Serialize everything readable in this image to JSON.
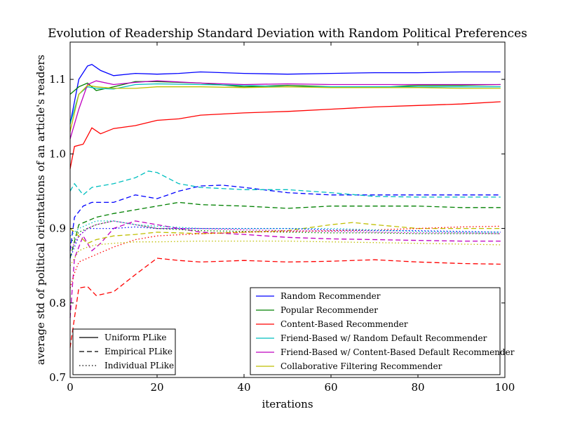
{
  "chart_data": {
    "type": "line",
    "title": "Evolution of Readership Standard Deviation with Random Political Preferences",
    "xlabel": "iterations",
    "ylabel": "average std of political orientations of an article's readers",
    "xlim": [
      0,
      100
    ],
    "ylim": [
      0.7,
      1.15
    ],
    "xticks": [
      0,
      20,
      40,
      60,
      80,
      100
    ],
    "yticks": [
      0.7,
      0.8,
      0.9,
      1.0,
      1.1
    ],
    "xtick_labels": [
      "0",
      "20",
      "40",
      "60",
      "80",
      "100"
    ],
    "ytick_labels": [
      "0.7",
      "0.8",
      "0.9",
      "1.0",
      "1.1"
    ],
    "grid": false,
    "legend_recommenders": {
      "placement": "lower-right",
      "entries": [
        {
          "name": "Random Recommender",
          "color": "#0000ff"
        },
        {
          "name": "Popular Recommender",
          "color": "#008000"
        },
        {
          "name": "Content-Based Recommender",
          "color": "#ff0000"
        },
        {
          "name": "Friend-Based w/ Random Default Recommender",
          "color": "#00bfbf"
        },
        {
          "name": "Friend-Based w/ Content-Based Default Recommender",
          "color": "#bf00bf"
        },
        {
          "name": "Collaborative Filtering Recommender",
          "color": "#bfbf00"
        }
      ]
    },
    "legend_plike": {
      "placement": "lower-left",
      "entries": [
        {
          "name": "Uniform PLike",
          "dash": "solid"
        },
        {
          "name": "Empirical PLike",
          "dash": "dashed"
        },
        {
          "name": "Individual PLike",
          "dash": "dotted"
        }
      ]
    },
    "series": [
      {
        "name": "Random Recommender / Uniform PLike",
        "color": "#0000ff",
        "dash": "solid",
        "x": [
          0,
          2,
          4,
          5,
          7,
          10,
          15,
          20,
          25,
          30,
          40,
          50,
          60,
          70,
          80,
          90,
          99
        ],
        "y": [
          1.04,
          1.1,
          1.118,
          1.12,
          1.112,
          1.105,
          1.108,
          1.107,
          1.108,
          1.11,
          1.108,
          1.107,
          1.108,
          1.109,
          1.109,
          1.11,
          1.11
        ]
      },
      {
        "name": "Popular Recommender / Uniform PLike",
        "color": "#008000",
        "dash": "solid",
        "x": [
          0,
          2,
          4,
          6,
          10,
          15,
          20,
          30,
          40,
          50,
          60,
          70,
          80,
          90,
          99
        ],
        "y": [
          1.08,
          1.09,
          1.095,
          1.085,
          1.09,
          1.097,
          1.097,
          1.095,
          1.09,
          1.092,
          1.09,
          1.089,
          1.092,
          1.092,
          1.093
        ]
      },
      {
        "name": "Content-Based Recommender / Uniform PLike",
        "color": "#ff0000",
        "dash": "solid",
        "x": [
          0,
          1,
          3,
          5,
          7,
          10,
          15,
          20,
          25,
          30,
          40,
          50,
          60,
          70,
          80,
          90,
          99
        ],
        "y": [
          0.98,
          1.01,
          1.013,
          1.035,
          1.027,
          1.034,
          1.038,
          1.045,
          1.047,
          1.052,
          1.055,
          1.057,
          1.06,
          1.063,
          1.065,
          1.067,
          1.07
        ]
      },
      {
        "name": "Friend-Based w/ Random Default Recommender / Uniform PLike",
        "color": "#00bfbf",
        "dash": "solid",
        "x": [
          0,
          2,
          4,
          6,
          10,
          15,
          20,
          30,
          40,
          50,
          60,
          70,
          80,
          90,
          99
        ],
        "y": [
          1.04,
          1.08,
          1.09,
          1.088,
          1.087,
          1.093,
          1.094,
          1.093,
          1.092,
          1.09,
          1.09,
          1.09,
          1.09,
          1.09,
          1.09
        ]
      },
      {
        "name": "Friend-Based w/ Content-Based Default Recommender / Uniform PLike",
        "color": "#bf00bf",
        "dash": "solid",
        "x": [
          0,
          2,
          4,
          6,
          10,
          15,
          20,
          30,
          40,
          50,
          60,
          70,
          80,
          90,
          99
        ],
        "y": [
          1.02,
          1.06,
          1.093,
          1.098,
          1.093,
          1.096,
          1.098,
          1.095,
          1.093,
          1.094,
          1.093,
          1.093,
          1.093,
          1.093,
          1.093
        ]
      },
      {
        "name": "Collaborative Filtering Recommender / Uniform PLike",
        "color": "#bfbf00",
        "dash": "solid",
        "x": [
          0,
          2,
          4,
          6,
          10,
          15,
          20,
          30,
          40,
          50,
          60,
          70,
          80,
          90,
          99
        ],
        "y": [
          1.03,
          1.08,
          1.092,
          1.09,
          1.088,
          1.088,
          1.09,
          1.09,
          1.089,
          1.09,
          1.089,
          1.089,
          1.089,
          1.088,
          1.088
        ]
      },
      {
        "name": "Random Recommender / Empirical PLike",
        "color": "#0000ff",
        "dash": "dashed",
        "x": [
          0,
          1,
          3,
          5,
          10,
          15,
          20,
          25,
          30,
          35,
          40,
          50,
          60,
          70,
          80,
          90,
          99
        ],
        "y": [
          0.87,
          0.915,
          0.93,
          0.935,
          0.935,
          0.945,
          0.94,
          0.95,
          0.957,
          0.958,
          0.955,
          0.948,
          0.945,
          0.945,
          0.945,
          0.945,
          0.945
        ]
      },
      {
        "name": "Popular Recommender / Empirical PLike",
        "color": "#008000",
        "dash": "dashed",
        "x": [
          0,
          2,
          4,
          6,
          10,
          15,
          20,
          25,
          30,
          40,
          50,
          60,
          70,
          80,
          90,
          99
        ],
        "y": [
          0.86,
          0.905,
          0.91,
          0.915,
          0.92,
          0.925,
          0.93,
          0.935,
          0.932,
          0.93,
          0.927,
          0.93,
          0.93,
          0.93,
          0.928,
          0.928
        ]
      },
      {
        "name": "Content-Based Recommender / Empirical PLike",
        "color": "#ff0000",
        "dash": "dashed",
        "x": [
          0,
          1,
          2,
          4,
          6,
          10,
          15,
          20,
          25,
          30,
          40,
          50,
          60,
          70,
          80,
          90,
          99
        ],
        "y": [
          0.74,
          0.78,
          0.82,
          0.822,
          0.81,
          0.815,
          0.838,
          0.86,
          0.857,
          0.855,
          0.857,
          0.855,
          0.856,
          0.858,
          0.855,
          0.853,
          0.852
        ]
      },
      {
        "name": "Friend-Based w/ Random Default Recommender / Empirical PLike",
        "color": "#00bfbf",
        "dash": "dashed",
        "x": [
          0,
          1,
          3,
          5,
          10,
          15,
          18,
          20,
          25,
          30,
          40,
          50,
          60,
          70,
          80,
          90,
          99
        ],
        "y": [
          0.95,
          0.96,
          0.945,
          0.955,
          0.96,
          0.968,
          0.977,
          0.975,
          0.96,
          0.955,
          0.952,
          0.952,
          0.948,
          0.943,
          0.942,
          0.942,
          0.942
        ]
      },
      {
        "name": "Friend-Based w/ Content-Based Default Recommender / Empirical PLike",
        "color": "#bf00bf",
        "dash": "dashed",
        "x": [
          0,
          1,
          3,
          5,
          7,
          10,
          15,
          20,
          25,
          30,
          40,
          50,
          60,
          70,
          80,
          90,
          99
        ],
        "y": [
          0.78,
          0.86,
          0.89,
          0.87,
          0.88,
          0.9,
          0.91,
          0.905,
          0.9,
          0.895,
          0.892,
          0.888,
          0.886,
          0.885,
          0.884,
          0.883,
          0.883
        ]
      },
      {
        "name": "Collaborative Filtering Recommender / Empirical PLike",
        "color": "#bfbf00",
        "dash": "dashed",
        "x": [
          0,
          2,
          4,
          6,
          10,
          15,
          20,
          30,
          40,
          50,
          60,
          65,
          70,
          80,
          90,
          99
        ],
        "y": [
          0.9,
          0.89,
          0.88,
          0.885,
          0.89,
          0.892,
          0.895,
          0.893,
          0.895,
          0.897,
          0.905,
          0.908,
          0.905,
          0.9,
          0.9,
          0.9
        ]
      },
      {
        "name": "Random Recommender / Individual PLike",
        "color": "#0000ff",
        "dash": "dotted",
        "x": [
          0,
          2,
          4,
          6,
          10,
          15,
          20,
          30,
          40,
          50,
          60,
          70,
          80,
          90,
          99
        ],
        "y": [
          0.86,
          0.89,
          0.9,
          0.9,
          0.9,
          0.902,
          0.9,
          0.9,
          0.9,
          0.9,
          0.898,
          0.897,
          0.897,
          0.896,
          0.895
        ]
      },
      {
        "name": "Popular Recommender / Individual PLike",
        "color": "#008000",
        "dash": "dotted",
        "x": [
          0,
          2,
          4,
          6,
          10,
          15,
          20,
          30,
          40,
          50,
          60,
          70,
          80,
          90,
          99
        ],
        "y": [
          0.88,
          0.895,
          0.9,
          0.905,
          0.91,
          0.905,
          0.9,
          0.897,
          0.896,
          0.895,
          0.894,
          0.894,
          0.893,
          0.893,
          0.893
        ]
      },
      {
        "name": "Content-Based Recommender / Individual PLike",
        "color": "#ff0000",
        "dash": "dotted",
        "x": [
          0,
          1,
          2,
          4,
          6,
          10,
          15,
          20,
          30,
          40,
          50,
          60,
          70,
          80,
          90,
          99
        ],
        "y": [
          0.82,
          0.84,
          0.855,
          0.86,
          0.865,
          0.875,
          0.885,
          0.89,
          0.893,
          0.895,
          0.896,
          0.897,
          0.898,
          0.9,
          0.902,
          0.903
        ]
      },
      {
        "name": "Friend-Based w/ Random Default Recommender / Individual PLike",
        "color": "#00bfbf",
        "dash": "dotted",
        "x": [
          0,
          2,
          4,
          6,
          10,
          15,
          20,
          30,
          40,
          50,
          60,
          70,
          80,
          90,
          99
        ],
        "y": [
          0.89,
          0.9,
          0.905,
          0.91,
          0.91,
          0.905,
          0.903,
          0.9,
          0.9,
          0.9,
          0.9,
          0.898,
          0.896,
          0.895,
          0.895
        ]
      },
      {
        "name": "Friend-Based w/ Content-Based Default Recommender / Individual PLike",
        "color": "#bf00bf",
        "dash": "dotted",
        "x": [
          0,
          2,
          4,
          6,
          10,
          15,
          20,
          30,
          40,
          50,
          60,
          70,
          80,
          90,
          99
        ],
        "y": [
          0.87,
          0.89,
          0.9,
          0.905,
          0.91,
          0.905,
          0.9,
          0.9,
          0.898,
          0.897,
          0.896,
          0.895,
          0.894,
          0.894,
          0.893
        ]
      },
      {
        "name": "Collaborative Filtering Recommender / Individual PLike",
        "color": "#bfbf00",
        "dash": "dotted",
        "x": [
          0,
          2,
          4,
          6,
          10,
          15,
          20,
          30,
          40,
          50,
          60,
          70,
          80,
          90,
          99
        ],
        "y": [
          0.85,
          0.87,
          0.875,
          0.878,
          0.88,
          0.882,
          0.882,
          0.883,
          0.883,
          0.883,
          0.882,
          0.881,
          0.88,
          0.879,
          0.878
        ]
      }
    ]
  }
}
